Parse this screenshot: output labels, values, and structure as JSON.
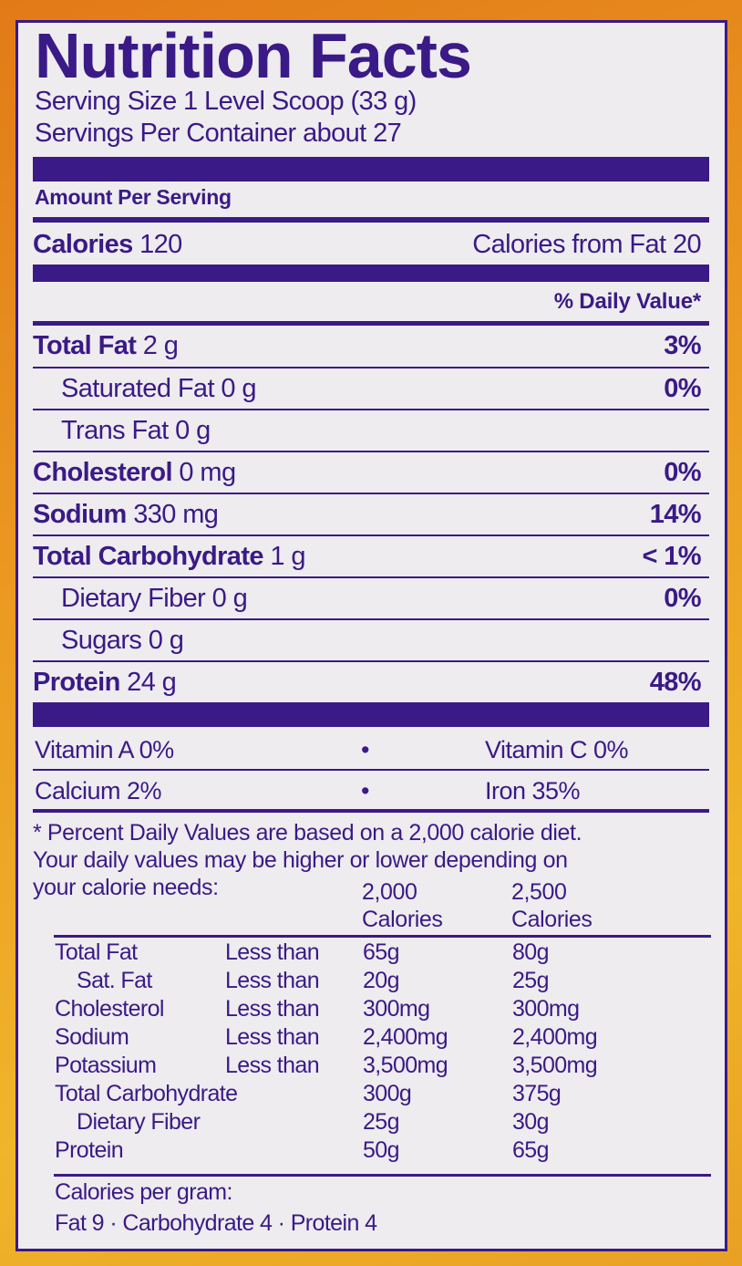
{
  "title": "Nutrition Facts",
  "serving_size": "Serving Size 1 Level Scoop (33 g)",
  "servings_per_container": "Servings Per Container about 27",
  "amount_per_serving": "Amount Per Serving",
  "calories": {
    "label": "Calories",
    "value": "120",
    "from_fat_label": "Calories from Fat",
    "from_fat_value": "20"
  },
  "daily_value_header": "% Daily Value*",
  "nutrients": [
    {
      "name": "Total Fat",
      "amount": "2 g",
      "dv": "3%",
      "bold": true
    },
    {
      "name": "Saturated Fat",
      "amount": "0 g",
      "dv": "0%",
      "bold": false
    },
    {
      "name": "Trans Fat",
      "amount": "0 g",
      "dv": "",
      "bold": false
    },
    {
      "name": "Cholesterol",
      "amount": "0 mg",
      "dv": "0%",
      "bold": true
    },
    {
      "name": "Sodium",
      "amount": "330 mg",
      "dv": "14%",
      "bold": true
    },
    {
      "name": "Total Carbohydrate",
      "amount": "1 g",
      "dv": "< 1%",
      "bold": true
    },
    {
      "name": "Dietary Fiber",
      "amount": "0 g",
      "dv": "0%",
      "bold": false
    },
    {
      "name": "Sugars",
      "amount": "0 g",
      "dv": "",
      "bold": false
    },
    {
      "name": "Protein",
      "amount": "24 g",
      "dv": "48%",
      "bold": true
    }
  ],
  "vitamins": [
    {
      "left": "Vitamin A 0%",
      "sep": "•",
      "right": "Vitamin C 0%"
    },
    {
      "left": "Calcium 2%",
      "sep": "•",
      "right": "Iron 35%"
    }
  ],
  "footnote": {
    "lines": [
      "* Percent Daily Values are based on a 2,000 calorie diet.",
      "Your daily values may be higher or lower depending on",
      "your calorie needs:"
    ],
    "col_headers": [
      [
        "2,000",
        "Calories"
      ],
      [
        "2,500",
        "Calories"
      ]
    ],
    "table": [
      [
        "Total Fat",
        "Less than",
        "65g",
        "80g"
      ],
      [
        "Sat. Fat",
        "Less than",
        "20g",
        "25g"
      ],
      [
        "Cholesterol",
        "Less than",
        "300mg",
        "300mg"
      ],
      [
        "Sodium",
        "Less than",
        "2,400mg",
        "2,400mg"
      ],
      [
        "Potassium",
        "Less than",
        "3,500mg",
        "3,500mg"
      ],
      [
        "Total Carbohydrate",
        "",
        "300g",
        "375g"
      ],
      [
        "Dietary Fiber",
        "",
        "25g",
        "30g"
      ],
      [
        "Protein",
        "",
        "50g",
        "65g"
      ]
    ],
    "calories_per_gram_label": "Calories per gram:",
    "calories_per_gram": "Fat 9 · Carbohydrate 4 · Protein 4"
  },
  "colors": {
    "ink": "#3a1a86",
    "panel": "#eeecef",
    "background": "#e8881e"
  }
}
